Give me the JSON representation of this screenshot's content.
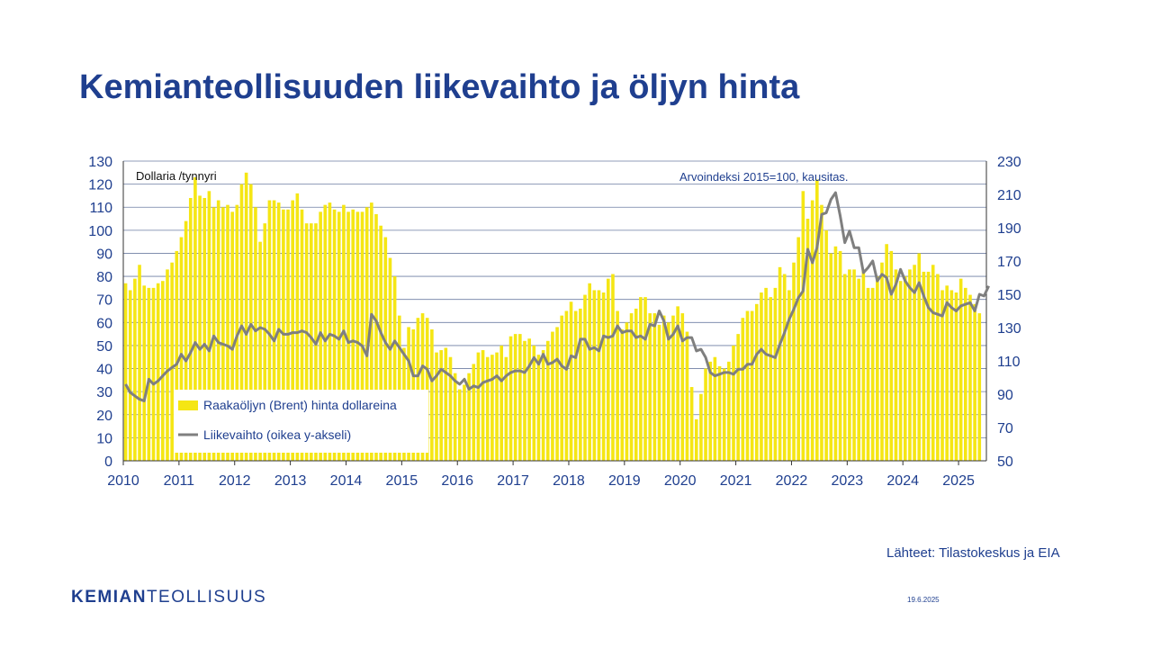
{
  "slide": {
    "title": "Kemianteollisuuden liikevaihto ja öljyn hinta",
    "source": "Lähteet: Tilastokeskus ja EIA",
    "logo_bold": "KEMIAN",
    "logo_rest": "TEOLLISUUS",
    "date": "19.6.2025"
  },
  "colors": {
    "title": "#1f3f8f",
    "bars": "#f5e614",
    "line": "#7f7f7f",
    "axis_text": "#1f3f8f",
    "grid": "#6e7ea3"
  },
  "chart_data": {
    "type": "bar",
    "left_axis_label": "Dollaria /tynnyri",
    "right_axis_label": "Arvoindeksi 2015=100, kausitas.",
    "left_ylim": [
      0,
      130
    ],
    "left_ticks": [
      0,
      10,
      20,
      30,
      40,
      50,
      60,
      70,
      80,
      90,
      100,
      110,
      120,
      130
    ],
    "right_ylim": [
      50,
      230
    ],
    "right_ticks": [
      50,
      70,
      90,
      110,
      130,
      150,
      170,
      190,
      210,
      230
    ],
    "x_ticks": [
      "2010",
      "2011",
      "2012",
      "2013",
      "2014",
      "2015",
      "2016",
      "2017",
      "2018",
      "2019",
      "2020",
      "2021",
      "2022",
      "2023",
      "2024",
      "2025"
    ],
    "grid": true,
    "legend": {
      "position": "lower-left"
    },
    "start": "2010-01",
    "series": [
      {
        "name": "Raakaöljyn (Brent) hinta dollareina",
        "type": "bar",
        "axis": "left",
        "values": [
          77,
          74,
          79,
          85,
          76,
          75,
          75,
          77,
          78,
          83,
          86,
          91,
          97,
          104,
          114,
          123,
          115,
          114,
          117,
          110,
          113,
          110,
          111,
          108,
          111,
          120,
          125,
          120,
          110,
          95,
          103,
          113,
          113,
          112,
          109,
          109,
          113,
          116,
          109,
          103,
          103,
          103,
          108,
          111,
          112,
          109,
          108,
          111,
          108,
          109,
          108,
          108,
          110,
          112,
          107,
          102,
          97,
          88,
          80,
          63,
          49,
          58,
          57,
          62,
          64,
          62,
          57,
          47,
          48,
          49,
          45,
          38,
          31,
          33,
          38,
          42,
          47,
          48,
          45,
          46,
          47,
          50,
          45,
          54,
          55,
          55,
          52,
          53,
          50,
          46,
          48,
          52,
          56,
          58,
          63,
          65,
          69,
          65,
          66,
          72,
          77,
          74,
          74,
          73,
          79,
          81,
          65,
          57,
          60,
          64,
          66,
          71,
          71,
          64,
          64,
          59,
          63,
          60,
          63,
          67,
          64,
          56,
          32,
          18,
          29,
          40,
          43,
          45,
          41,
          40,
          43,
          50,
          55,
          62,
          65,
          65,
          68,
          73,
          75,
          71,
          75,
          84,
          81,
          74,
          86,
          97,
          117,
          105,
          113,
          122,
          111,
          100,
          90,
          93,
          91,
          81,
          83,
          83,
          79,
          83,
          75,
          75,
          80,
          86,
          94,
          91,
          83,
          78,
          80,
          83,
          85,
          90,
          82,
          82,
          85,
          81,
          74,
          76,
          74,
          73,
          79,
          75,
          72,
          68,
          64
        ]
      },
      {
        "name": "Liikevaihto (oikea y-akseli)",
        "type": "line",
        "axis": "right",
        "values": [
          96,
          91,
          89,
          87,
          86,
          99,
          96,
          98,
          101,
          104,
          106,
          108,
          114,
          110,
          115,
          121,
          117,
          120,
          116,
          125,
          121,
          120,
          119,
          117,
          125,
          131,
          126,
          132,
          128,
          130,
          129,
          126,
          122,
          129,
          126,
          126,
          127,
          127,
          128,
          127,
          124,
          120,
          127,
          122,
          126,
          125,
          123,
          128,
          121,
          122,
          121,
          119,
          113,
          138,
          134,
          127,
          121,
          117,
          122,
          118,
          114,
          110,
          101,
          101,
          107,
          105,
          98,
          101,
          105,
          103,
          101,
          98,
          96,
          99,
          93,
          95,
          94,
          97,
          98,
          99,
          101,
          98,
          101,
          103,
          104,
          104,
          103,
          107,
          112,
          108,
          114,
          108,
          109,
          111,
          107,
          105,
          113,
          112,
          123,
          123,
          117,
          118,
          116,
          125,
          124,
          125,
          131,
          127,
          128,
          128,
          124,
          125,
          123,
          132,
          131,
          140,
          134,
          123,
          126,
          131,
          122,
          124,
          124,
          116,
          117,
          112,
          103,
          101,
          102,
          103,
          103,
          102,
          105,
          105,
          108,
          108,
          114,
          117,
          114,
          113,
          112,
          120,
          127,
          135,
          141,
          148,
          152,
          177,
          169,
          178,
          198,
          199,
          207,
          211,
          197,
          181,
          188,
          178,
          178,
          163,
          166,
          170,
          158,
          162,
          160,
          150,
          156,
          165,
          158,
          154,
          151,
          157,
          149,
          142,
          139,
          138,
          137,
          145,
          142,
          140,
          143,
          144,
          145,
          140,
          150,
          149,
          155
        ]
      }
    ]
  }
}
